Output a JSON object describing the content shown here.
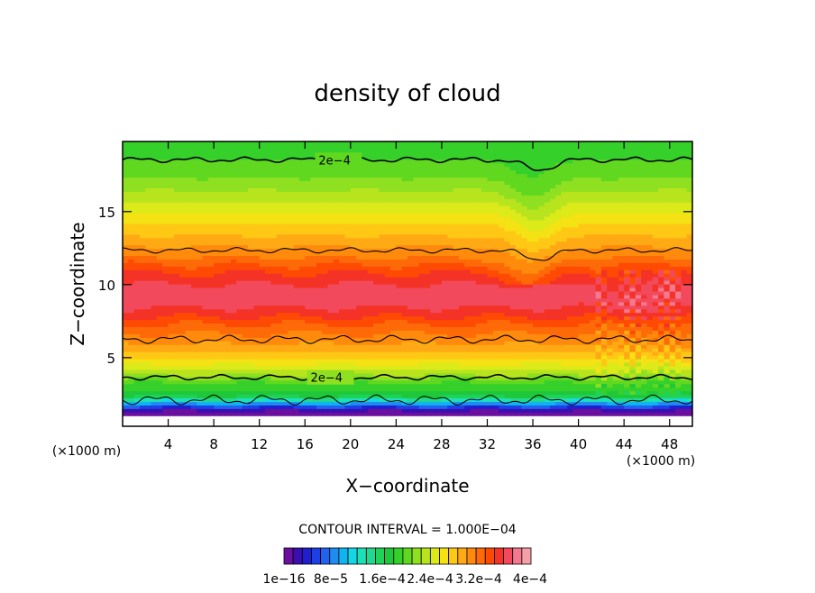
{
  "chart_data": {
    "type": "heatmap",
    "title": "density of cloud",
    "xlabel": "X−coordinate",
    "ylabel": "Z−coordinate",
    "x_unit": "(×1000 m)",
    "xlim": [
      0,
      50
    ],
    "ylim": [
      0.3,
      19.8
    ],
    "x_ticks": [
      "4",
      "8",
      "12",
      "16",
      "20",
      "24",
      "28",
      "32",
      "36",
      "40",
      "44",
      "48"
    ],
    "y_ticks": [
      "5",
      "10",
      "15"
    ],
    "contour_interval_text": "CONTOUR INTERVAL = 1.000E−04",
    "contour_labels": [
      "2e−4",
      "2e−4"
    ],
    "colorbar_labels": [
      "1e−16",
      "8e−5",
      "1.6e−4",
      "2.4e−4",
      "3.2e−4",
      "4e−4"
    ],
    "colorbar_colors": [
      "#6a0f9e",
      "#3a0fb0",
      "#1f1fd0",
      "#1c3fe6",
      "#1f63f0",
      "#1f8cf0",
      "#10b4ee",
      "#16d6e6",
      "#1ee0b8",
      "#22d890",
      "#1fd25a",
      "#1ec83a",
      "#36d02a",
      "#60d820",
      "#8ee020",
      "#b8e41e",
      "#dcea1a",
      "#f4e214",
      "#ffc814",
      "#ffaa14",
      "#ff8a0c",
      "#ff6a08",
      "#ff4a04",
      "#f53226",
      "#f24a5c",
      "#f37890",
      "#f5a0a8"
    ],
    "profile_z": [
      1.2,
      1.5,
      1.8,
      2.1,
      2.4,
      2.8,
      3.3,
      4.0,
      5.0,
      6.0,
      7.0,
      8.0,
      9.0,
      10.0,
      11.0,
      12.0,
      13.0,
      14.0,
      15.0,
      16.0,
      17.0,
      18.0,
      18.6,
      19.2
    ],
    "profile_density": [
      0.0,
      3e-05,
      8e-05,
      0.00013,
      0.00017,
      0.00019,
      0.0002,
      0.00024,
      0.00028,
      0.00031,
      0.00033,
      0.00036,
      0.00038,
      0.00037,
      0.00035,
      0.00032,
      0.0003,
      0.00028,
      0.00026,
      0.00024,
      0.00022,
      0.000205,
      0.0002,
      0.00019
    ]
  }
}
